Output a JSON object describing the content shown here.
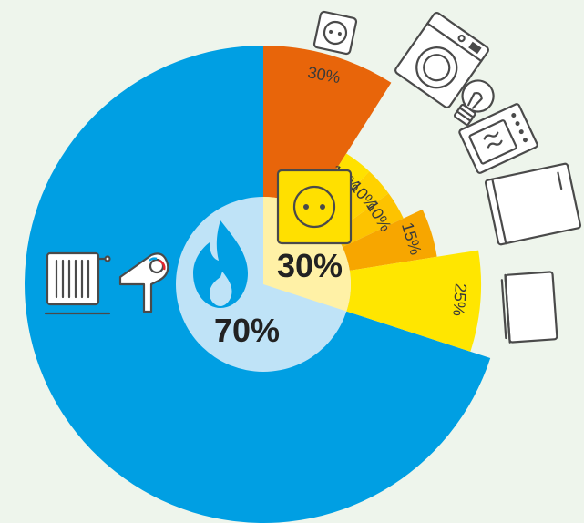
{
  "chart_data": {
    "type": "pie",
    "total_split": [
      {
        "name": "gas",
        "value": 70,
        "label": "70%",
        "color": "#009fe3"
      },
      {
        "name": "electricity",
        "value": 30,
        "label": "30%",
        "color": "#fff1a6"
      }
    ],
    "electricity_breakdown": [
      {
        "icon": "socket-icon",
        "value": 30,
        "label": "30%",
        "color": "#e8650a"
      },
      {
        "icon": "washing-machine-icon",
        "value": 10,
        "label": "10%",
        "color": "#ffe100"
      },
      {
        "icon": "light-bulb-icon",
        "value": 10,
        "label": "10%",
        "color": "#ffd200"
      },
      {
        "icon": "oven-icon",
        "value": 10,
        "label": "10%",
        "color": "#fdc300"
      },
      {
        "icon": "refrigerator-icon",
        "value": 15,
        "label": "15%",
        "color": "#f7a600"
      },
      {
        "icon": "tv-icon",
        "value": 25,
        "label": "25%",
        "color": "#ffe600"
      }
    ],
    "gas_icons": [
      "radiator-icon",
      "hairdryer-icon"
    ],
    "center_icons": {
      "gas": "flame-icon",
      "electricity": "socket-icon"
    },
    "colors": {
      "inner_circle": "#bfe3f7",
      "background": "#eef5ec"
    }
  }
}
